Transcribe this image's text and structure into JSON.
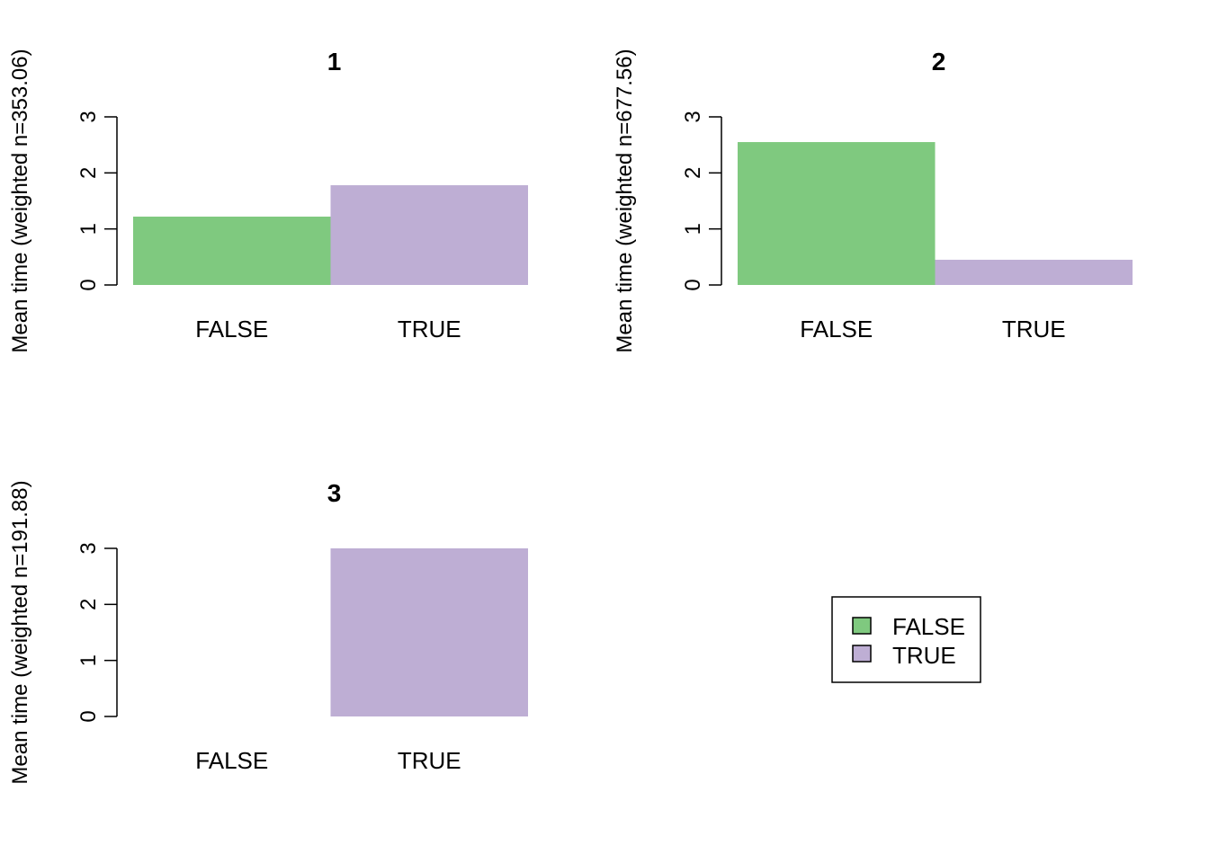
{
  "chart_data": [
    {
      "type": "bar",
      "title": "1",
      "ylabel": "Mean time (weighted n=353.06)",
      "xlabel": "",
      "categories": [
        "FALSE",
        "TRUE"
      ],
      "values": [
        1.22,
        1.78
      ],
      "yticks": [
        0,
        1,
        2,
        3
      ],
      "ylim": [
        0,
        3
      ]
    },
    {
      "type": "bar",
      "title": "2",
      "ylabel": "Mean time (weighted n=677.56)",
      "xlabel": "",
      "categories": [
        "FALSE",
        "TRUE"
      ],
      "values": [
        2.55,
        0.45
      ],
      "yticks": [
        0,
        1,
        2,
        3
      ],
      "ylim": [
        0,
        3
      ]
    },
    {
      "type": "bar",
      "title": "3",
      "ylabel": "Mean time (weighted n=191.88)",
      "xlabel": "",
      "categories": [
        "FALSE",
        "TRUE"
      ],
      "values": [
        0,
        3.0
      ],
      "yticks": [
        0,
        1,
        2,
        3
      ],
      "ylim": [
        0,
        3
      ]
    }
  ],
  "legend": {
    "placement": "bottom-right panel",
    "items": [
      {
        "label": "FALSE",
        "color": "#7fc97f"
      },
      {
        "label": "TRUE",
        "color": "#beaed4"
      }
    ]
  },
  "colors": [
    "#7fc97f",
    "#beaed4"
  ]
}
